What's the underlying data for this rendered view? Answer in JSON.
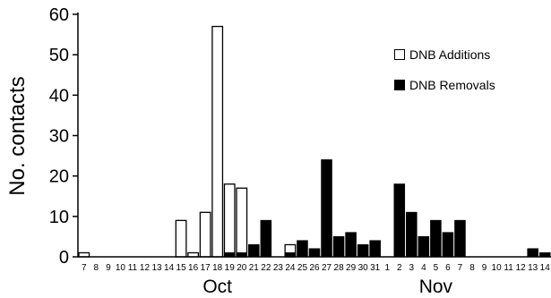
{
  "chart_data": {
    "type": "bar",
    "xlabel": "",
    "ylabel": "No. contacts",
    "ylim": [
      0,
      60
    ],
    "yticks": [
      0,
      10,
      20,
      30,
      40,
      50,
      60
    ],
    "grid": false,
    "legend_position": "top-right",
    "months": [
      {
        "label": "Oct",
        "from": "18"
      },
      {
        "label": "Nov",
        "from": "5"
      }
    ],
    "categories": [
      "7",
      "8",
      "9",
      "10",
      "11",
      "12",
      "13",
      "14",
      "15",
      "16",
      "17",
      "18",
      "19",
      "20",
      "21",
      "22",
      "23",
      "24",
      "25",
      "26",
      "27",
      "28",
      "29",
      "30",
      "31",
      "1",
      "2",
      "3",
      "4",
      "5",
      "6",
      "7",
      "8",
      "9",
      "10",
      "11",
      "12",
      "13",
      "14"
    ],
    "series": [
      {
        "name": "DNB Additions",
        "style": "hollow",
        "values": [
          1,
          0,
          0,
          0,
          0,
          0,
          0,
          0,
          9,
          1,
          11,
          57,
          18,
          17,
          0,
          0,
          0,
          3,
          0,
          0,
          0,
          0,
          0,
          0,
          0,
          0,
          0,
          0,
          0,
          0,
          0,
          0,
          0,
          0,
          0,
          0,
          0,
          0,
          0
        ]
      },
      {
        "name": "DNB Removals",
        "style": "filled",
        "values": [
          0,
          0,
          0,
          0,
          0,
          0,
          0,
          0,
          0,
          0,
          0,
          0,
          1,
          1,
          3,
          9,
          0,
          1,
          4,
          2,
          24,
          5,
          6,
          3,
          4,
          0,
          18,
          11,
          5,
          9,
          6,
          9,
          0,
          0,
          0,
          0,
          0,
          2,
          1
        ]
      }
    ]
  }
}
